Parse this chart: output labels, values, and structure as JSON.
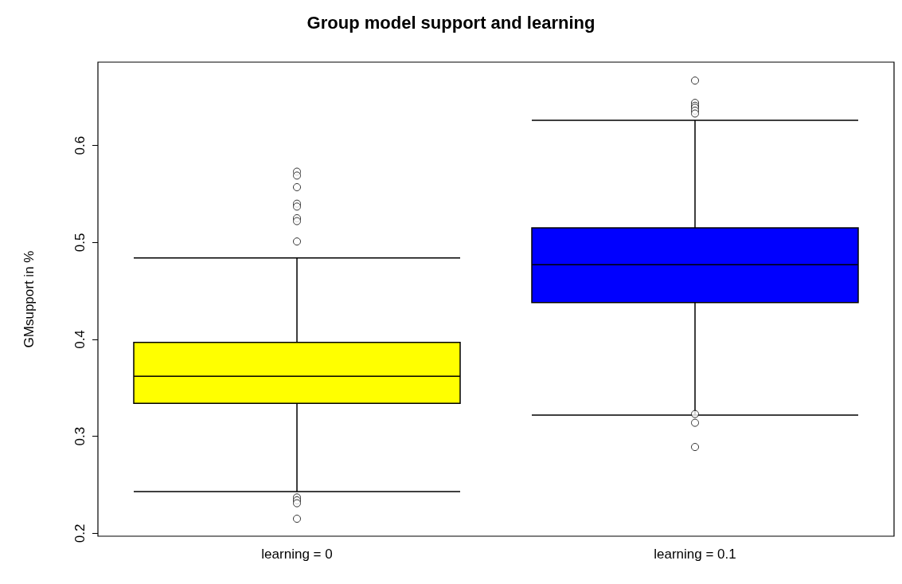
{
  "chart_data": {
    "type": "box",
    "title": "Group model support and learning",
    "ylabel": "GMsupport in %",
    "categories": [
      "learning = 0",
      "learning = 0.1"
    ],
    "colors": [
      "#ffff00",
      "#0000ff"
    ],
    "boxes": [
      {
        "low": 0.243,
        "q1": 0.334,
        "median": 0.362,
        "q3": 0.397,
        "high": 0.484,
        "outliers": [
          0.573,
          0.569,
          0.557,
          0.54,
          0.537,
          0.525,
          0.522,
          0.501,
          0.237,
          0.234,
          0.231,
          0.215
        ]
      },
      {
        "low": 0.322,
        "q1": 0.438,
        "median": 0.477,
        "q3": 0.515,
        "high": 0.626,
        "outliers": [
          0.667,
          0.644,
          0.641,
          0.639,
          0.636,
          0.633,
          0.323,
          0.314,
          0.289
        ]
      }
    ],
    "ylim": [
      0.197,
      0.686
    ],
    "yticks": [
      0.2,
      0.3,
      0.4,
      0.5,
      0.6
    ],
    "grid": false,
    "marker": "circle"
  }
}
